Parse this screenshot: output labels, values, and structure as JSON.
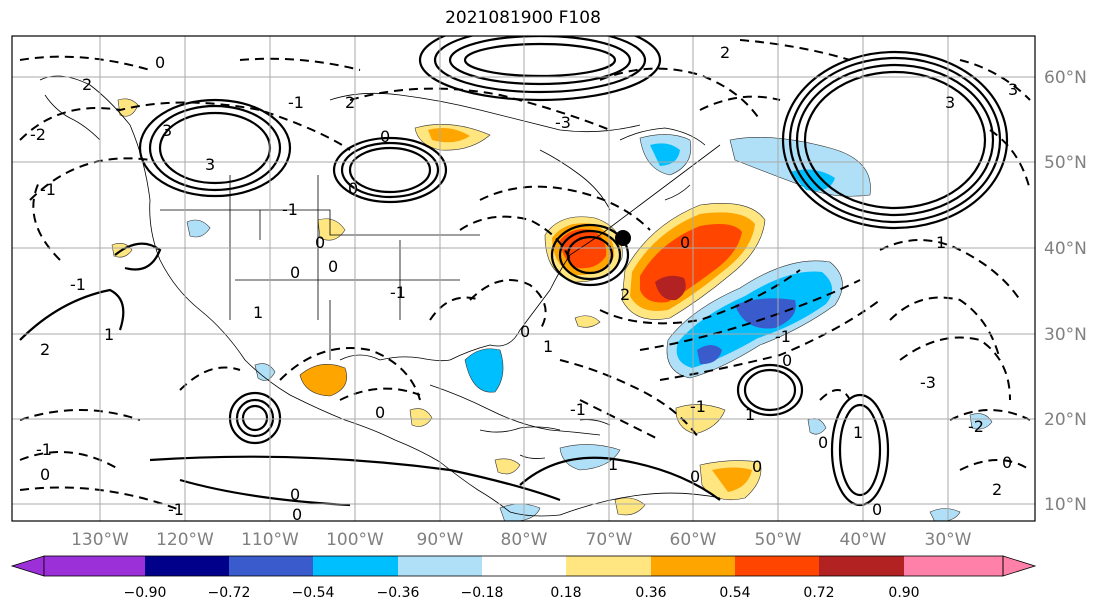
{
  "title": "2021081900 F108",
  "lon_labels": [
    "130°W",
    "120°W",
    "110°W",
    "100°W",
    "90°W",
    "80°W",
    "70°W",
    "60°W",
    "50°W",
    "40°W",
    "30°W"
  ],
  "lat_labels": [
    "60°N",
    "50°N",
    "40°N",
    "30°N",
    "20°N",
    "10°N"
  ],
  "colorbar": {
    "ticks": [
      "−0.90",
      "−0.72",
      "−0.54",
      "−0.36",
      "−0.18",
      "0.18",
      "0.36",
      "0.54",
      "0.72",
      "0.90"
    ],
    "colors": [
      "#9b30d9",
      "#00008b",
      "#3a5bcc",
      "#00bfff",
      "#b0e0f8",
      "#ffffff",
      "#ffe680",
      "#ffa500",
      "#ff4500",
      "#b22222",
      "#ff80a8"
    ]
  },
  "contour_labels": [
    "0",
    "3",
    "2",
    "-1",
    "0",
    "3",
    "-1",
    "-2",
    "-1",
    "-1",
    "0",
    "0",
    "1",
    "2",
    "0",
    "2",
    "0",
    "0",
    "1",
    "-1",
    "-1",
    "0",
    "1",
    "0",
    "-3",
    "3",
    "0",
    "-1",
    "2",
    "0",
    "-1",
    "1",
    "0",
    "0",
    "-1",
    "1",
    "0",
    "0",
    "-3",
    "2",
    "0",
    "3",
    "-2",
    "1",
    "2",
    "0",
    "-1",
    "1",
    "0"
  ],
  "colors": {
    "positive_light": "#ffe680",
    "positive_mid": "#ffa500",
    "positive_strong": "#ff4500",
    "positive_max": "#b22222",
    "negative_light": "#b0e0f8",
    "negative_mid": "#00bfff",
    "negative_strong": "#3a5bcc"
  },
  "storm_marker": "black-dot"
}
